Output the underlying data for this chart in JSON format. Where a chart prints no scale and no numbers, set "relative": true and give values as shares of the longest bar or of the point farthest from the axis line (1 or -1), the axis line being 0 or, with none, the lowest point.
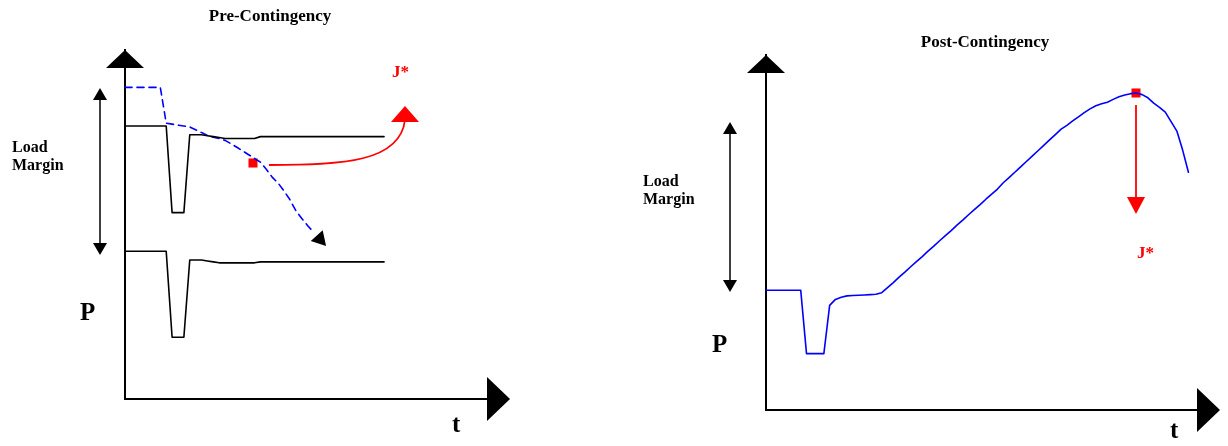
{
  "chart_data": [
    {
      "type": "line",
      "title": "Pre-Contingency",
      "xlabel": "t",
      "ylabel": "P",
      "relative": true,
      "legend": false,
      "grid": false,
      "tick_labels": false,
      "annotations": [
        "Load Margin",
        "J*"
      ],
      "categories": [
        null,
        null,
        null,
        null,
        null,
        null,
        null,
        null,
        null,
        null,
        null,
        null,
        null,
        null,
        null,
        null,
        null,
        null,
        null,
        null,
        null,
        null,
        null,
        null,
        null,
        null,
        null,
        null,
        null,
        null,
        null,
        null,
        null,
        null,
        null,
        null,
        null,
        null,
        null,
        null,
        null,
        null,
        null,
        null,
        null,
        null,
        null,
        null,
        null,
        null,
        null,
        null,
        null,
        null,
        null,
        null,
        null,
        null,
        null,
        null,
        null,
        null,
        null
      ],
      "series": [
        {
          "color": "#000000",
          "values": [
            0.876,
            0.876,
            0.876,
            0.876,
            0.876,
            0.876,
            0.876,
            0.876,
            0.598,
            0.598,
            0.598,
            0.848,
            0.848,
            0.848,
            0.845,
            0.842,
            0.839,
            0.836,
            0.836,
            0.836,
            0.836,
            0.836,
            0.836,
            0.842,
            0.842,
            0.842,
            0.842,
            0.842,
            0.842,
            0.842,
            0.842,
            0.842,
            0.842,
            0.842,
            0.842,
            0.842,
            0.842,
            0.842,
            0.842,
            0.842,
            0.842,
            0.842,
            0.842,
            0.842,
            0.842,
            null,
            null,
            null,
            null,
            null,
            null,
            null,
            null,
            null,
            null,
            null,
            null,
            null,
            null,
            null,
            null,
            null,
            null
          ]
        },
        {
          "color": "#000000",
          "values": [
            0.474,
            0.474,
            0.474,
            0.474,
            0.474,
            0.474,
            0.474,
            0.474,
            0.198,
            0.198,
            0.198,
            0.446,
            0.446,
            0.446,
            0.443,
            0.44,
            0.437,
            0.437,
            0.437,
            0.437,
            0.437,
            0.437,
            0.437,
            0.44,
            0.44,
            0.44,
            0.44,
            0.44,
            0.44,
            0.44,
            0.44,
            0.44,
            0.44,
            0.44,
            0.44,
            0.44,
            0.44,
            0.44,
            0.44,
            0.44,
            0.44,
            0.44,
            0.44,
            0.44,
            0.44,
            null,
            null,
            null,
            null,
            null,
            null,
            null,
            null,
            null,
            null,
            null,
            null,
            null,
            null,
            null,
            null,
            null,
            null
          ]
        },
        {
          "color": "#0000ff",
          "line_style": "dashed",
          "values": [
            1,
            1,
            1,
            1,
            1,
            1,
            1,
            0.885,
            0.882,
            0.879,
            0.876,
            0.873,
            0.864,
            0.855,
            0.846,
            0.84,
            0.836,
            0.83,
            0.819,
            0.808,
            0.796,
            0.784,
            0.772,
            0.76,
            0.737,
            0.712,
            0.693,
            0.668,
            0.64,
            0.605,
            0.58,
            0.557,
            0.536,
            null,
            null,
            null,
            null,
            null,
            null,
            null,
            null,
            null,
            null,
            null,
            null,
            null,
            null,
            null,
            null,
            null,
            null,
            null,
            null,
            null,
            null,
            null,
            null,
            null,
            null,
            null,
            null,
            null,
            null
          ]
        }
      ]
    },
    {
      "type": "line",
      "title": "Post-Contingency",
      "xlabel": "t",
      "ylabel": "P",
      "relative": true,
      "legend": false,
      "grid": false,
      "tick_labels": false,
      "annotations": [
        "Load Margin",
        "J*"
      ],
      "categories": [
        null,
        null,
        null,
        null,
        null,
        null,
        null,
        null,
        null,
        null,
        null,
        null,
        null,
        null,
        null,
        null,
        null,
        null,
        null,
        null,
        null,
        null,
        null,
        null,
        null,
        null,
        null,
        null,
        null,
        null,
        null,
        null,
        null,
        null,
        null,
        null,
        null,
        null,
        null,
        null,
        null,
        null,
        null,
        null,
        null,
        null,
        null,
        null,
        null,
        null,
        null,
        null,
        null,
        null,
        null,
        null,
        null,
        null,
        null,
        null,
        null,
        null,
        null,
        null,
        null,
        null,
        null,
        null,
        null,
        null,
        null,
        null,
        null,
        null,
        null,
        null
      ],
      "series": [
        {
          "color": "#0000ff",
          "values": [
            0.378,
            0.378,
            0.378,
            0.378,
            0.378,
            0.378,
            0.378,
            0.178,
            0.178,
            0.178,
            0.178,
            0.33,
            0.349,
            0.356,
            0.36,
            0.361,
            0.362,
            0.363,
            0.364,
            0.365,
            0.37,
            0.386,
            0.402,
            0.419,
            0.435,
            0.452,
            0.468,
            0.484,
            0.501,
            0.517,
            0.534,
            0.55,
            0.566,
            0.583,
            0.599,
            0.616,
            0.632,
            0.648,
            0.665,
            0.681,
            0.697,
            0.717,
            0.733,
            0.75,
            0.767,
            0.784,
            0.801,
            0.818,
            0.835,
            0.852,
            0.869,
            0.886,
            0.898,
            0.912,
            0.925,
            0.938,
            0.95,
            0.96,
            0.966,
            0.971,
            0.98,
            0.988,
            0.994,
            0.998,
            1,
            0.995,
            0.985,
            0.968,
            0.955,
            0.94,
            0.91,
            0.88,
            0.82,
            0.75,
            null,
            null
          ]
        }
      ]
    }
  ]
}
